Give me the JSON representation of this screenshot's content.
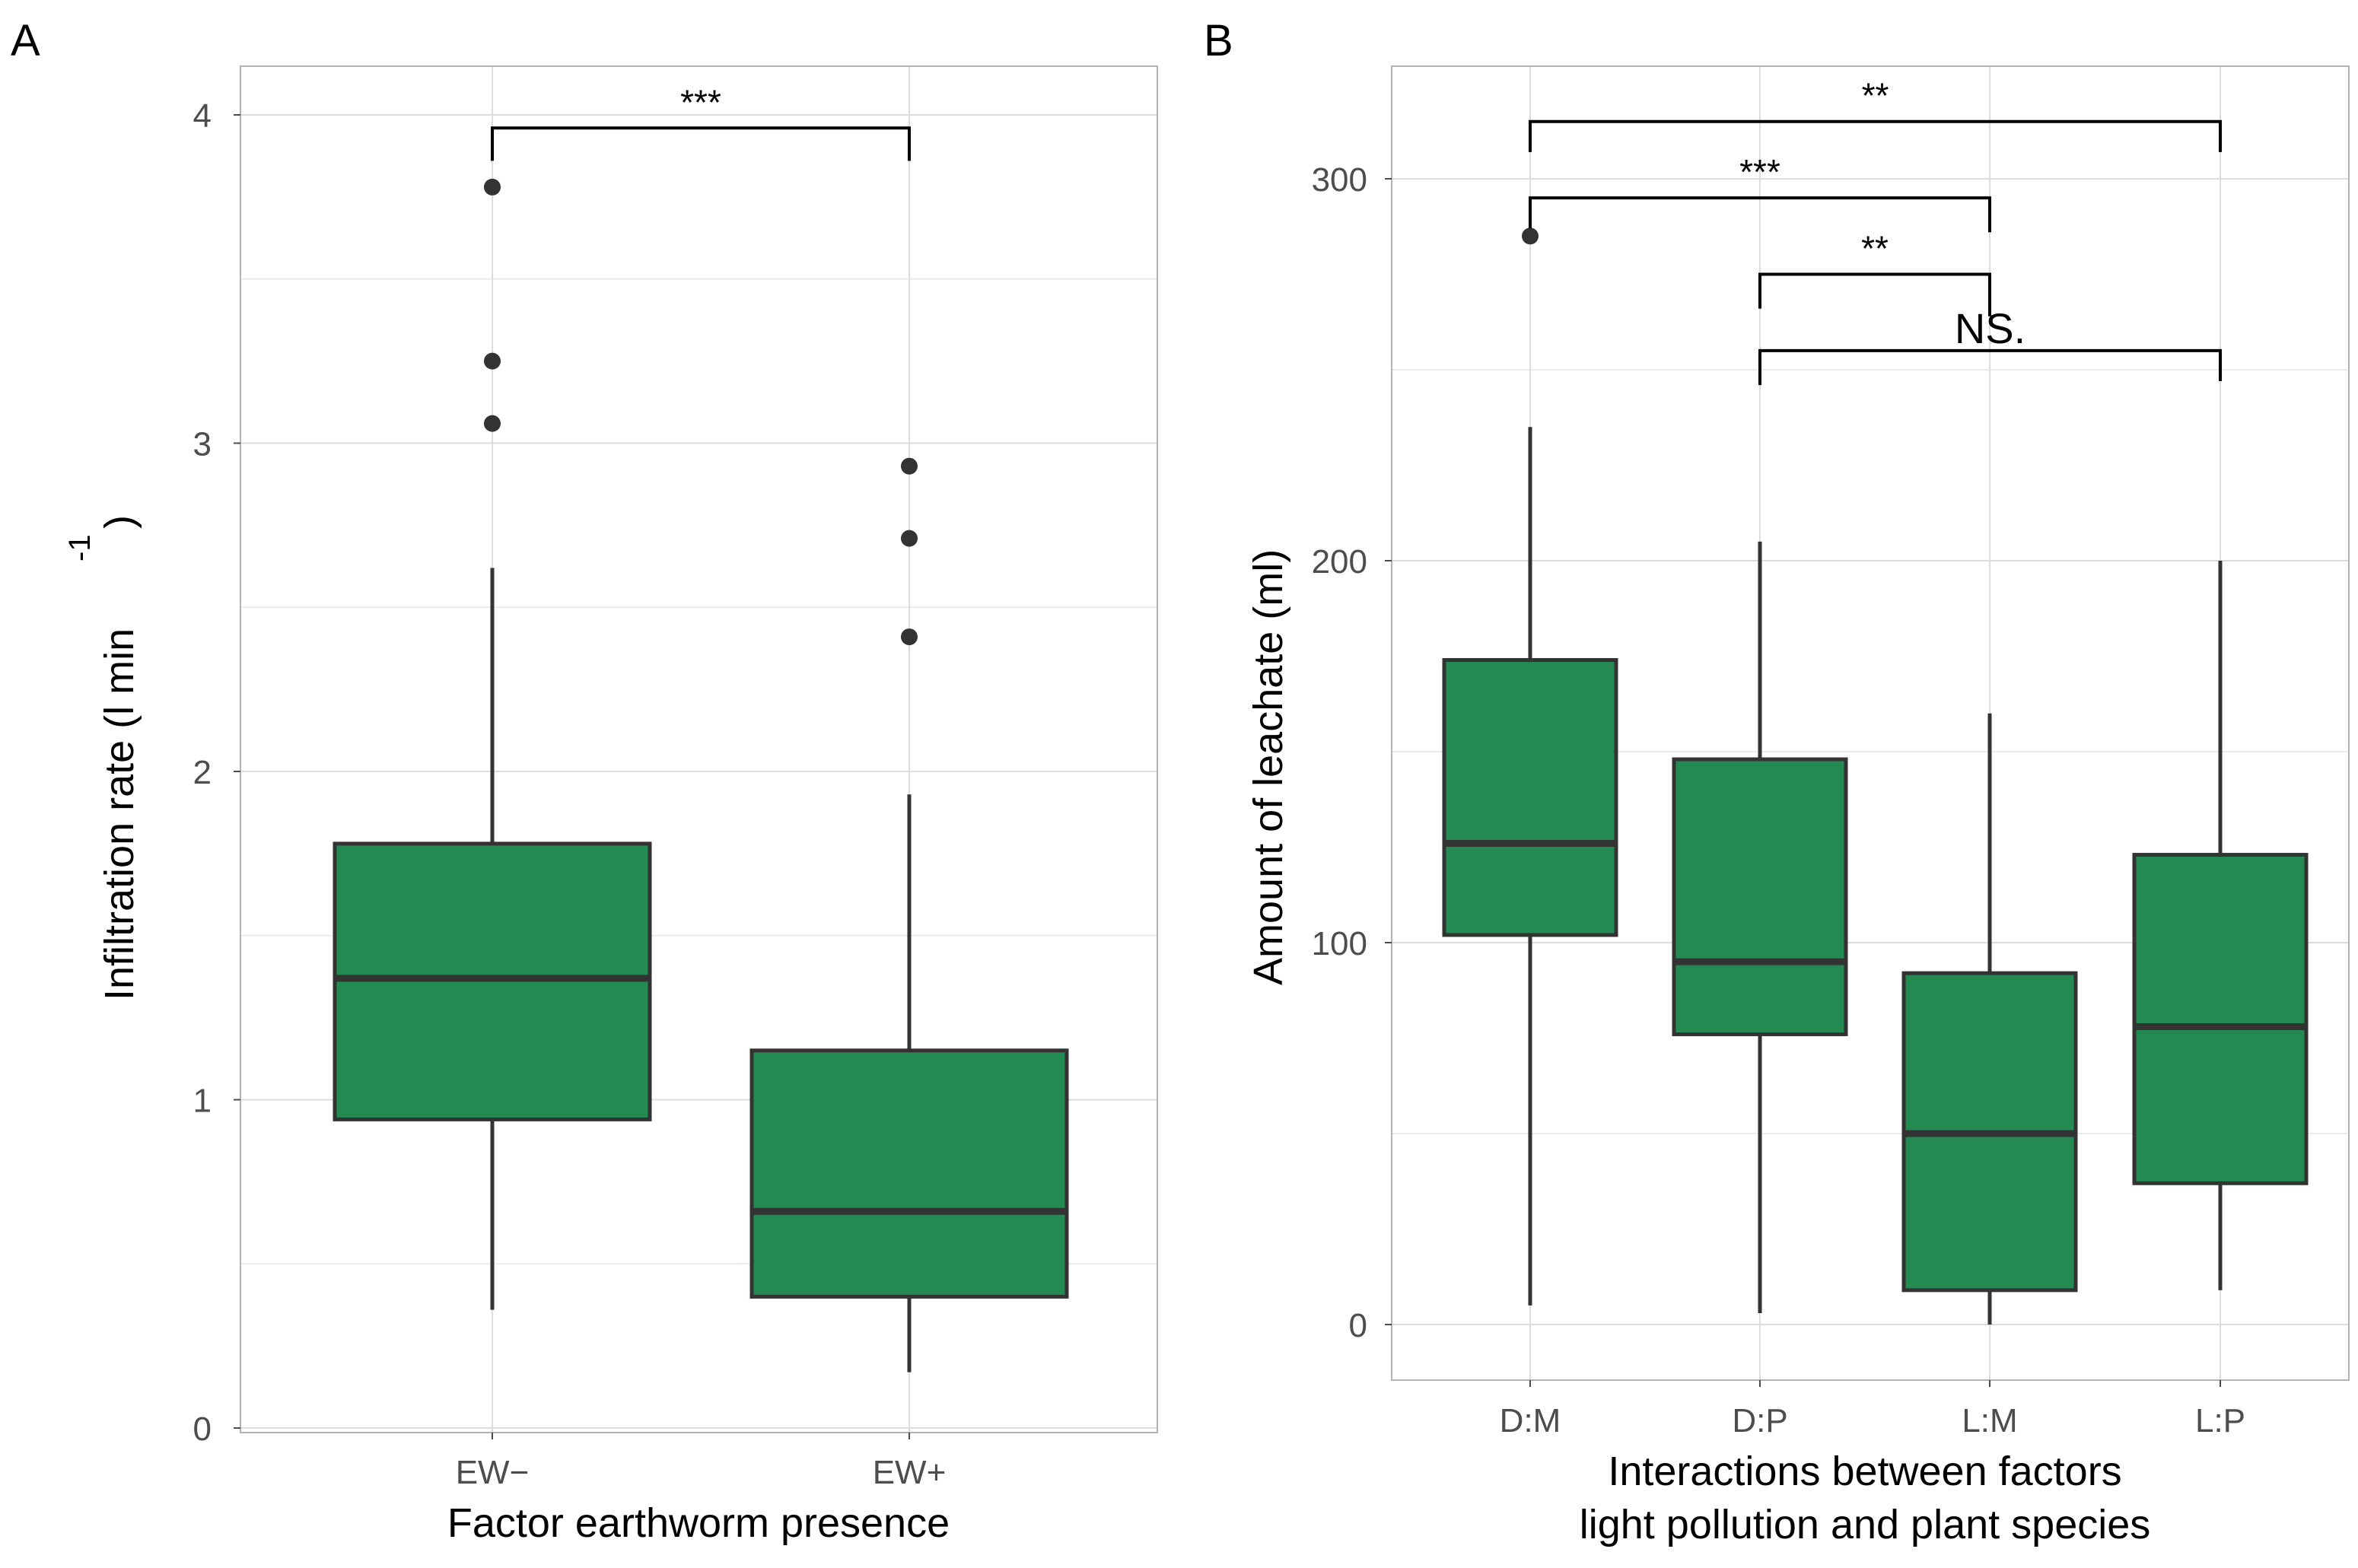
{
  "colors": {
    "box_fill": "#238b52",
    "box_stroke": "#333333",
    "grid_major": "#dcdcdc",
    "grid_minor": "#ececec",
    "panel_border": "#b3b3b3"
  },
  "chart_data": [
    {
      "type": "box",
      "panel_label": "A",
      "xlabel": "Factor earthworm presence",
      "ylabel": "Infiltration rate (l min",
      "ylabel_sup": "-1",
      "ylabel_close": ")",
      "ylim": [
        0,
        4.2
      ],
      "yticks": [
        0,
        1,
        2,
        3,
        4
      ],
      "ytick_labels": [
        "0",
        "1",
        "2",
        "3",
        "4"
      ],
      "categories": [
        "EW−",
        "EW+"
      ],
      "boxes": [
        {
          "category": "EW−",
          "whisker_low": 0.36,
          "q1": 0.94,
          "median": 1.37,
          "q3": 1.78,
          "whisker_high": 2.62,
          "outliers": [
            3.06,
            3.25,
            3.78
          ]
        },
        {
          "category": "EW+",
          "whisker_low": 0.17,
          "q1": 0.4,
          "median": 0.66,
          "q3": 1.15,
          "whisker_high": 1.93,
          "outliers": [
            2.41,
            2.71,
            2.93
          ]
        }
      ],
      "significance": [
        {
          "from": 0,
          "to": 1,
          "y": 3.96,
          "left_end": 3.86,
          "right_end": 3.86,
          "label": "***"
        }
      ]
    },
    {
      "type": "box",
      "panel_label": "B",
      "xlabel": "Interactions between factors",
      "xlabel2": "light pollution and plant species",
      "ylabel": "Amount of leachate (ml)",
      "ylim": [
        -15,
        330
      ],
      "yticks": [
        0,
        100,
        200,
        300
      ],
      "ytick_labels": [
        "0",
        "100",
        "200",
        "300"
      ],
      "categories": [
        "D:M",
        "D:P",
        "L:M",
        "L:P"
      ],
      "boxes": [
        {
          "category": "D:M",
          "whisker_low": 5,
          "q1": 102,
          "median": 126,
          "q3": 174,
          "whisker_high": 235,
          "outliers": [
            285
          ]
        },
        {
          "category": "D:P",
          "whisker_low": 3,
          "q1": 76,
          "median": 95,
          "q3": 148,
          "whisker_high": 205,
          "outliers": []
        },
        {
          "category": "L:M",
          "whisker_low": 0,
          "q1": 9,
          "median": 50,
          "q3": 92,
          "whisker_high": 160,
          "outliers": []
        },
        {
          "category": "L:P",
          "whisker_low": 9,
          "q1": 37,
          "median": 78,
          "q3": 123,
          "whisker_high": 200,
          "outliers": []
        }
      ],
      "significance": [
        {
          "from": 0,
          "to": 3,
          "y": 315,
          "left_end": 307,
          "right_end": 307,
          "label": "**"
        },
        {
          "from": 0,
          "to": 2,
          "y": 295,
          "left_end": 287,
          "right_end": 286,
          "label": "***"
        },
        {
          "from": 1,
          "to": 2,
          "y": 275,
          "left_end": 266,
          "right_end": 264,
          "label": "**"
        },
        {
          "from": 1,
          "to": 3,
          "y": 255,
          "left_end": 246,
          "right_end": 247,
          "label": "NS."
        }
      ]
    }
  ]
}
